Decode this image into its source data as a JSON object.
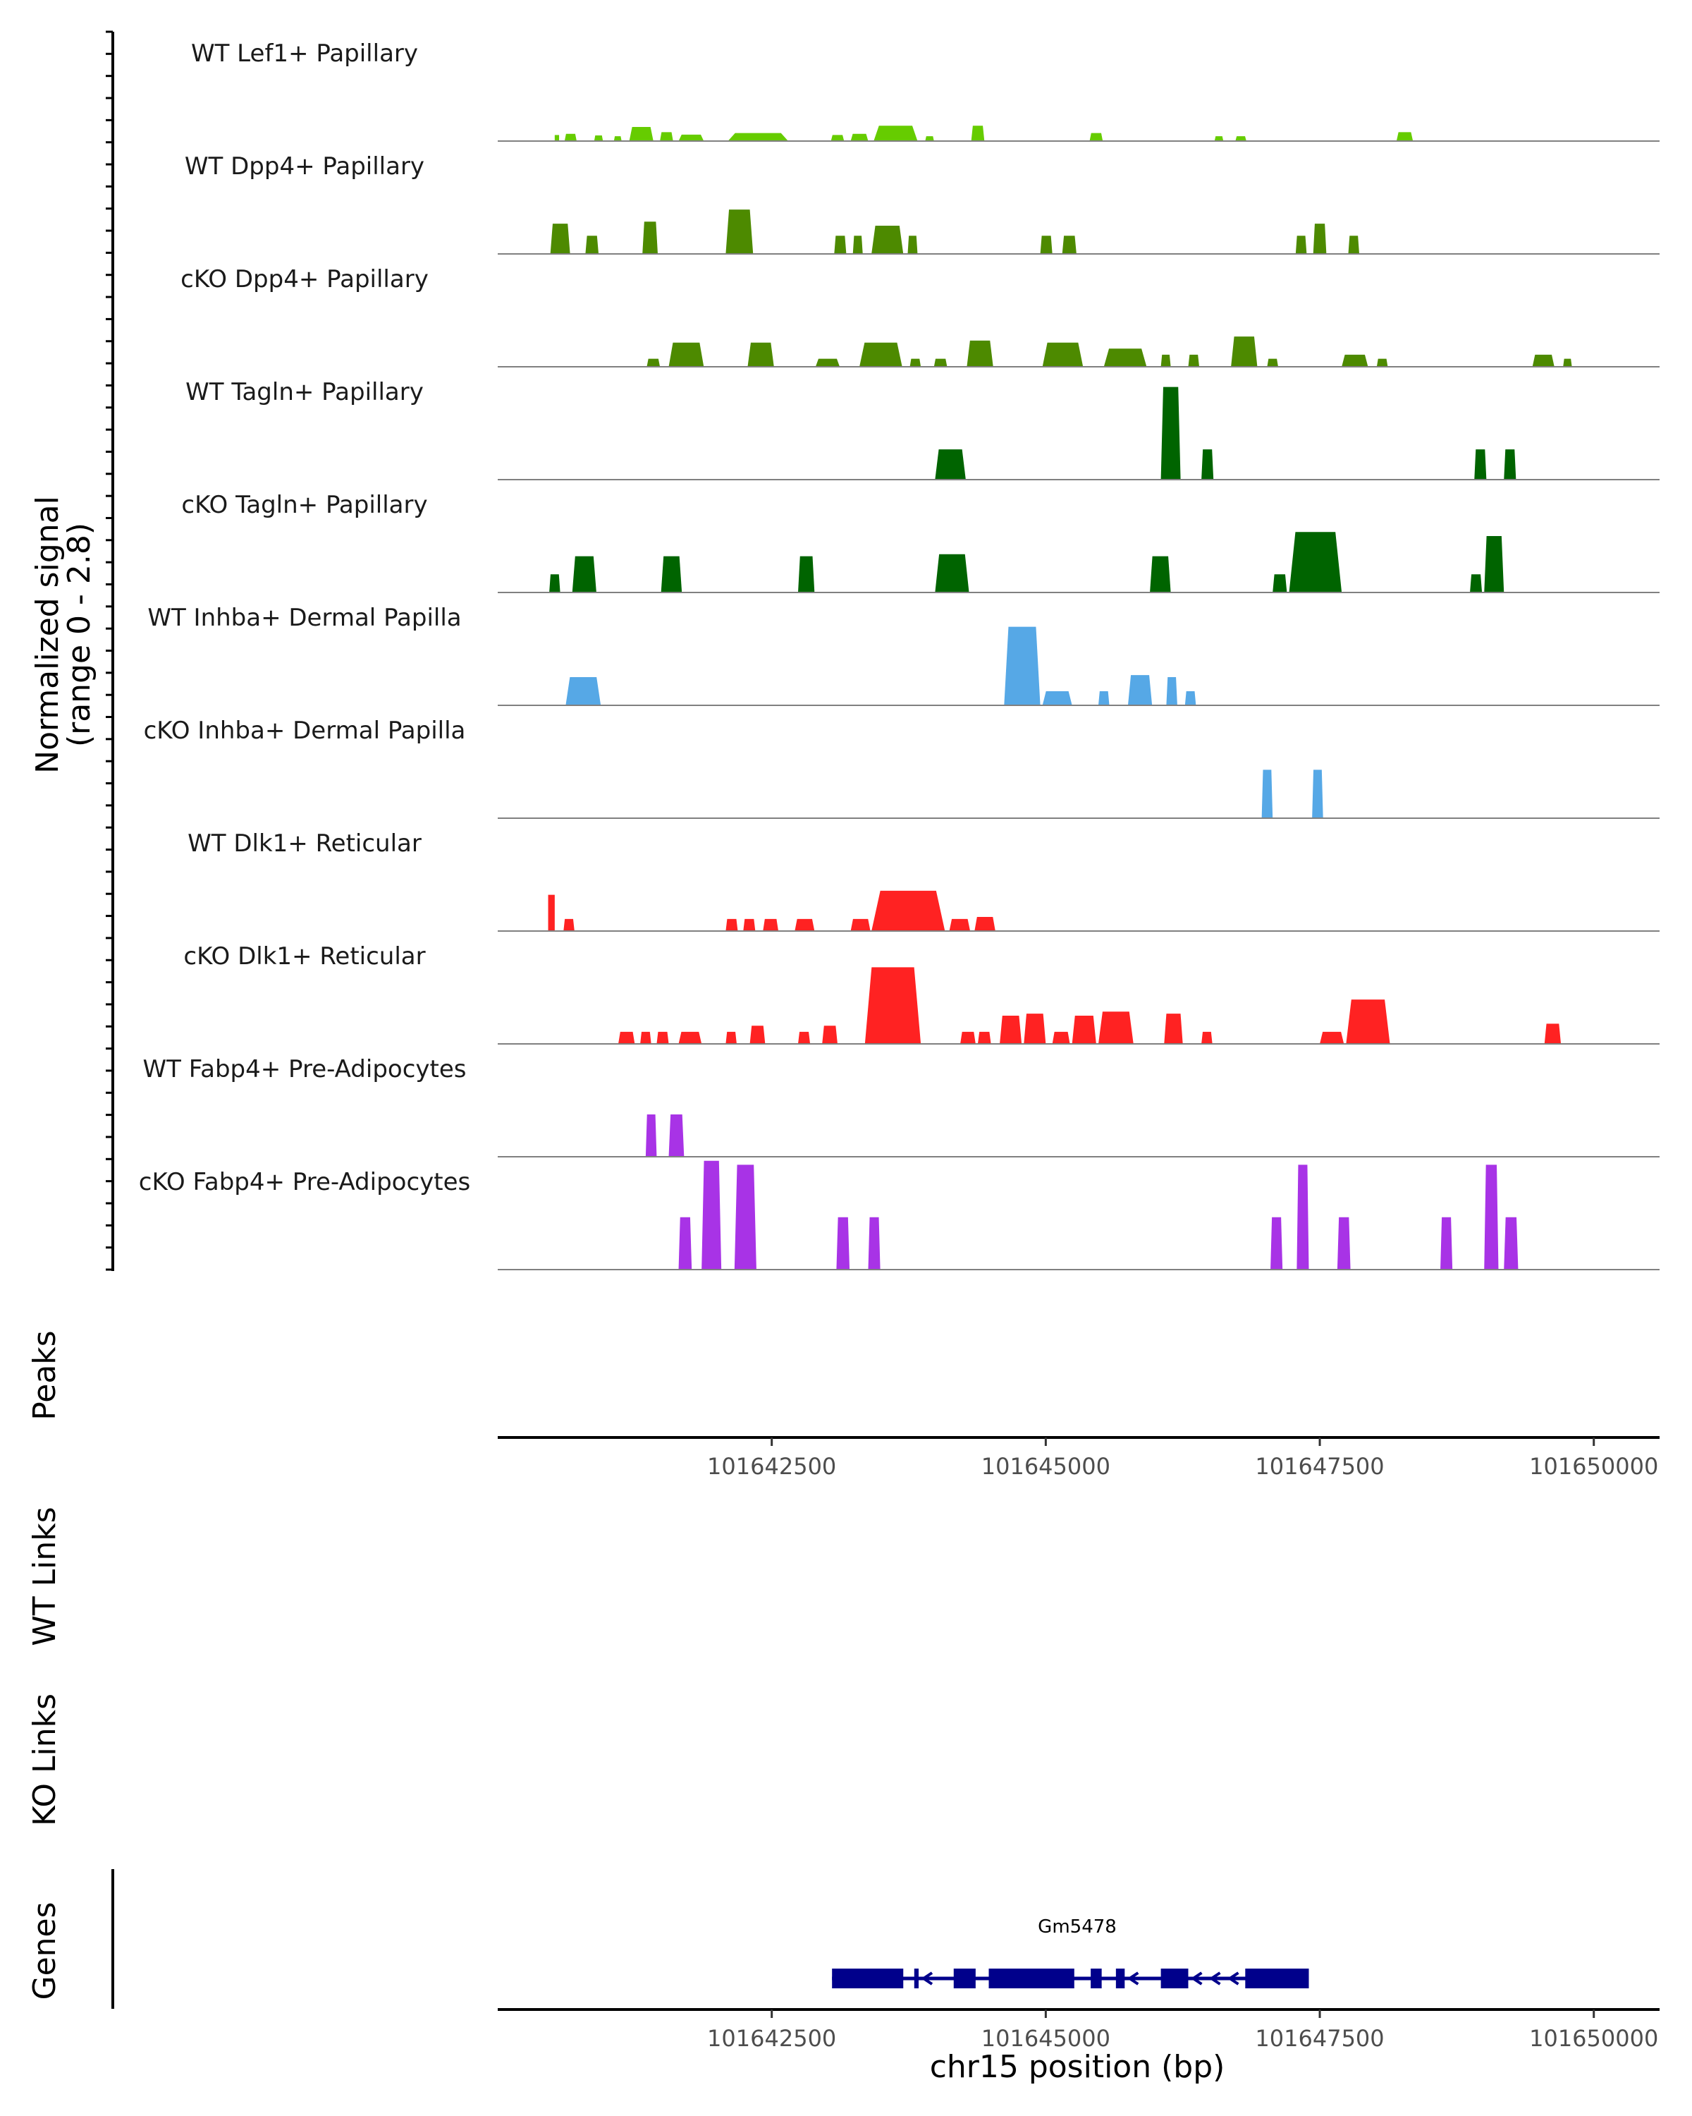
{
  "chart_data": {
    "type": "area",
    "title": "",
    "ylabel_line1": "Normalized signal",
    "ylabel_line2": "(range 0 - 2.8)",
    "ylim": [
      0,
      2.8
    ],
    "xlabel": "chr15 position (bp)",
    "chromosome": "chr15",
    "xlim": [
      101640000,
      101650600
    ],
    "x_ticks": [
      101642500,
      101645000,
      101647500,
      101650000
    ],
    "x_tick_labels": [
      "101642500",
      "101645000",
      "101647500",
      "101650000"
    ],
    "panels": [
      "Peaks",
      "WT Links",
      "KO Links",
      "Genes"
    ],
    "tracks": [
      {
        "name": "WT Lef1+ Papillary",
        "color": "#66CC00",
        "peaks": [
          [
            101640520,
            101640560,
            0.15
          ],
          [
            101640610,
            101640720,
            0.18
          ],
          [
            101640880,
            101640960,
            0.14
          ],
          [
            101641060,
            101641130,
            0.12
          ],
          [
            101641200,
            101641420,
            0.35
          ],
          [
            101641480,
            101641600,
            0.22
          ],
          [
            101641650,
            101641880,
            0.16
          ],
          [
            101642100,
            101642650,
            0.2
          ],
          [
            101643040,
            101643160,
            0.15
          ],
          [
            101643220,
            101643380,
            0.18
          ],
          [
            101643430,
            101643830,
            0.38
          ],
          [
            101643900,
            101643980,
            0.12
          ],
          [
            101644320,
            101644440,
            0.38
          ],
          [
            101645400,
            101645520,
            0.2
          ],
          [
            101646540,
            101646620,
            0.12
          ],
          [
            101646730,
            101646830,
            0.12
          ],
          [
            101648200,
            101648350,
            0.22
          ]
        ]
      },
      {
        "name": "WT Dpp4+ Papillary",
        "color": "#4D8A00",
        "peaks": [
          [
            101640480,
            101640660,
            0.75
          ],
          [
            101640800,
            101640920,
            0.45
          ],
          [
            101641320,
            101641460,
            0.8
          ],
          [
            101642080,
            101642330,
            1.1
          ],
          [
            101643070,
            101643180,
            0.45
          ],
          [
            101643240,
            101643330,
            0.45
          ],
          [
            101643410,
            101643700,
            0.7
          ],
          [
            101643740,
            101643830,
            0.45
          ],
          [
            101644950,
            101645060,
            0.45
          ],
          [
            101645150,
            101645280,
            0.45
          ],
          [
            101647280,
            101647380,
            0.45
          ],
          [
            101647440,
            101647560,
            0.75
          ],
          [
            101647760,
            101647860,
            0.45
          ]
        ]
      },
      {
        "name": "cKO Dpp4+ Papillary",
        "color": "#4D8A00",
        "peaks": [
          [
            101641360,
            101641480,
            0.2
          ],
          [
            101641560,
            101641880,
            0.6
          ],
          [
            101642280,
            101642520,
            0.6
          ],
          [
            101642900,
            101643120,
            0.2
          ],
          [
            101643300,
            101643690,
            0.6
          ],
          [
            101643760,
            101643860,
            0.2
          ],
          [
            101643980,
            101644100,
            0.2
          ],
          [
            101644280,
            101644520,
            0.65
          ],
          [
            101644970,
            101645340,
            0.6
          ],
          [
            101645530,
            101645920,
            0.45
          ],
          [
            101646050,
            101646140,
            0.3
          ],
          [
            101646300,
            101646400,
            0.3
          ],
          [
            101646690,
            101646930,
            0.75
          ],
          [
            101647020,
            101647120,
            0.2
          ],
          [
            101647700,
            101647940,
            0.3
          ],
          [
            101648020,
            101648120,
            0.2
          ],
          [
            101649440,
            101649640,
            0.3
          ],
          [
            101649720,
            101649800,
            0.2
          ]
        ]
      },
      {
        "name": "WT Tagln+ Papillary",
        "color": "#006400",
        "peaks": [
          [
            101643990,
            101644270,
            0.75
          ],
          [
            101646050,
            101646230,
            2.3
          ],
          [
            101646420,
            101646530,
            0.75
          ],
          [
            101648910,
            101649020,
            0.75
          ],
          [
            101649180,
            101649290,
            0.75
          ]
        ]
      },
      {
        "name": "cKO Tagln+ Papillary",
        "color": "#006400",
        "peaks": [
          [
            101640470,
            101640570,
            0.45
          ],
          [
            101640680,
            101640900,
            0.9
          ],
          [
            101641490,
            101641680,
            0.9
          ],
          [
            101642740,
            101642890,
            0.9
          ],
          [
            101643990,
            101644300,
            0.95
          ],
          [
            101645950,
            101646140,
            0.9
          ],
          [
            101647070,
            101647200,
            0.45
          ],
          [
            101647220,
            101647700,
            1.5
          ],
          [
            101648870,
            101648980,
            0.45
          ],
          [
            101649000,
            101649180,
            1.4
          ]
        ]
      },
      {
        "name": "WT Inhba+ Dermal Papilla",
        "color": "#56A8E6",
        "peaks": [
          [
            101640620,
            101640940,
            0.7
          ],
          [
            101644620,
            101644950,
            1.95
          ],
          [
            101644970,
            101645240,
            0.35
          ],
          [
            101645480,
            101645580,
            0.35
          ],
          [
            101645750,
            101645970,
            0.75
          ],
          [
            101646100,
            101646200,
            0.7
          ],
          [
            101646270,
            101646370,
            0.35
          ]
        ]
      },
      {
        "name": "cKO Inhba+ Dermal Papilla",
        "color": "#56A8E6",
        "peaks": [
          [
            101646970,
            101647070,
            1.2
          ],
          [
            101647430,
            101647530,
            1.2
          ]
        ]
      },
      {
        "name": "WT Dlk1+ Reticular",
        "color": "#FF2222",
        "peaks": [
          [
            101640460,
            101640520,
            0.9
          ],
          [
            101640600,
            101640700,
            0.3
          ],
          [
            101642080,
            101642190,
            0.3
          ],
          [
            101642240,
            101642350,
            0.3
          ],
          [
            101642420,
            101642560,
            0.3
          ],
          [
            101642710,
            101642890,
            0.3
          ],
          [
            101643220,
            101643400,
            0.3
          ],
          [
            101643410,
            101644080,
            1.0
          ],
          [
            101644120,
            101644310,
            0.3
          ],
          [
            101644350,
            101644540,
            0.35
          ]
        ]
      },
      {
        "name": "cKO Dlk1+ Reticular",
        "color": "#FF2222",
        "peaks": [
          [
            101641100,
            101641250,
            0.3
          ],
          [
            101641300,
            101641400,
            0.3
          ],
          [
            101641450,
            101641560,
            0.3
          ],
          [
            101641650,
            101641860,
            0.3
          ],
          [
            101642080,
            101642180,
            0.3
          ],
          [
            101642300,
            101642440,
            0.45
          ],
          [
            101642740,
            101642850,
            0.3
          ],
          [
            101642960,
            101643100,
            0.45
          ],
          [
            101643350,
            101643860,
            1.9
          ],
          [
            101644220,
            101644360,
            0.3
          ],
          [
            101644380,
            101644500,
            0.3
          ],
          [
            101644580,
            101644780,
            0.7
          ],
          [
            101644800,
            101645000,
            0.75
          ],
          [
            101645060,
            101645220,
            0.3
          ],
          [
            101645240,
            101645460,
            0.7
          ],
          [
            101645480,
            101645800,
            0.8
          ],
          [
            101646080,
            101646250,
            0.75
          ],
          [
            101646420,
            101646520,
            0.3
          ],
          [
            101647500,
            101647720,
            0.3
          ],
          [
            101647740,
            101648140,
            1.1
          ],
          [
            101649550,
            101649700,
            0.5
          ]
        ]
      },
      {
        "name": "WT Fabp4+ Pre-Adipocytes",
        "color": "#A833E6",
        "peaks": [
          [
            101641350,
            101641450,
            1.05
          ],
          [
            101641560,
            101641700,
            1.05
          ]
        ]
      },
      {
        "name": "cKO Fabp4+ Pre-Adipocytes",
        "color": "#A833E6",
        "peaks": [
          [
            101641650,
            101641770,
            1.3
          ],
          [
            101641860,
            101642040,
            2.7
          ],
          [
            101642160,
            101642360,
            2.6
          ],
          [
            101643090,
            101643210,
            1.3
          ],
          [
            101643380,
            101643490,
            1.3
          ],
          [
            101647050,
            101647160,
            1.3
          ],
          [
            101647290,
            101647400,
            2.6
          ],
          [
            101647660,
            101647780,
            1.3
          ],
          [
            101648600,
            101648710,
            1.3
          ],
          [
            101649000,
            101649130,
            2.6
          ],
          [
            101649180,
            101649310,
            1.3
          ]
        ]
      }
    ],
    "gene": {
      "name": "Gm5478",
      "start": 101643050,
      "end": 101647400,
      "strand": "-",
      "exons": [
        [
          101643050,
          101643700
        ],
        [
          101643800,
          101643840
        ],
        [
          101644160,
          101644360
        ],
        [
          101644480,
          101645260
        ],
        [
          101645410,
          101645510
        ],
        [
          101645640,
          101645720
        ],
        [
          101646050,
          101646300
        ],
        [
          101646820,
          101647400
        ]
      ]
    }
  }
}
